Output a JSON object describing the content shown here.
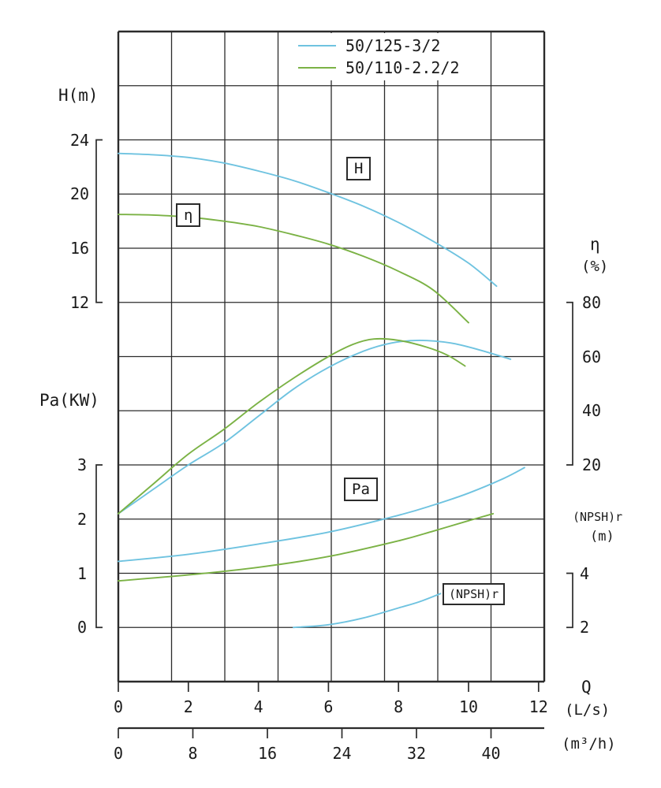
{
  "legend": {
    "items": [
      {
        "label": "50/125-3/2",
        "color": "#6fc3e0"
      },
      {
        "label": "50/110-2.2/2",
        "color": "#7bb245"
      }
    ]
  },
  "axis_titles": {
    "h": "H(m)",
    "pa": "Pa(KW)",
    "eta_symbol": "η",
    "eta_unit": "(%)",
    "npsh": "(NPSH)r",
    "npsh_unit": "(m)",
    "q": "Q",
    "q_unit_ls": "(L/s)",
    "q_unit_m3h": "(m³/h)"
  },
  "curve_labels": {
    "h": "H",
    "eta": "η",
    "pa": "Pa",
    "npsh": "(NPSH)r"
  },
  "chart_data": {
    "type": "line",
    "grid": true,
    "legend_position": "top-center",
    "x_axis": {
      "label": "Q",
      "primary_unit": "(L/s)",
      "primary_ticks": [
        0,
        2,
        4,
        6,
        8,
        10,
        12
      ],
      "primary_range": [
        0,
        12
      ],
      "secondary_unit": "(m³/h)",
      "secondary_ticks": [
        0,
        8,
        16,
        24,
        32,
        40
      ]
    },
    "y_axes": {
      "H": {
        "label": "H(m)",
        "ticks": [
          24,
          20,
          16,
          12
        ]
      },
      "Pa": {
        "label": "Pa(KW)",
        "ticks": [
          3,
          2,
          1,
          0
        ]
      },
      "eta": {
        "label": "η(%)",
        "ticks": [
          80,
          60,
          40,
          20
        ]
      },
      "NPSH": {
        "label": "(NPSH)r (m)",
        "ticks": [
          4,
          2
        ]
      }
    },
    "series": [
      {
        "model": "50/125-3/2",
        "quantity": "H",
        "axis": "H",
        "color": "#6fc3e0",
        "points": [
          [
            0,
            23
          ],
          [
            1,
            22.9
          ],
          [
            2,
            22.7
          ],
          [
            3,
            22.3
          ],
          [
            4,
            21.7
          ],
          [
            5,
            21.0
          ],
          [
            6,
            20.1
          ],
          [
            7,
            19.1
          ],
          [
            8,
            17.9
          ],
          [
            9,
            16.5
          ],
          [
            10,
            14.9
          ],
          [
            10.8,
            13.2
          ]
        ]
      },
      {
        "model": "50/110-2.2/2",
        "quantity": "H",
        "axis": "H",
        "color": "#7bb245",
        "points": [
          [
            0,
            18.5
          ],
          [
            1,
            18.45
          ],
          [
            2,
            18.3
          ],
          [
            3,
            18.0
          ],
          [
            4,
            17.6
          ],
          [
            5,
            17.0
          ],
          [
            6,
            16.3
          ],
          [
            7,
            15.4
          ],
          [
            8,
            14.3
          ],
          [
            9,
            12.9
          ],
          [
            10,
            10.5
          ]
        ]
      },
      {
        "model": "50/125-3/2",
        "quantity": "eta",
        "axis": "eta",
        "color": "#6fc3e0",
        "points": [
          [
            0,
            2
          ],
          [
            1,
            11
          ],
          [
            2,
            20
          ],
          [
            3,
            28
          ],
          [
            4,
            38
          ],
          [
            5,
            48
          ],
          [
            6,
            56
          ],
          [
            7,
            62
          ],
          [
            7.8,
            65
          ],
          [
            8.6,
            66
          ],
          [
            9.5,
            65
          ],
          [
            10.3,
            62.5
          ],
          [
            11.2,
            59
          ]
        ]
      },
      {
        "model": "50/110-2.2/2",
        "quantity": "eta",
        "axis": "eta",
        "color": "#7bb245",
        "points": [
          [
            0,
            2
          ],
          [
            1,
            13
          ],
          [
            2,
            24
          ],
          [
            3,
            33
          ],
          [
            4,
            43
          ],
          [
            5,
            52
          ],
          [
            6,
            60
          ],
          [
            6.7,
            64.5
          ],
          [
            7.3,
            66.5
          ],
          [
            8,
            66
          ],
          [
            8.8,
            63.5
          ],
          [
            9.4,
            60.5
          ],
          [
            9.9,
            56.5
          ]
        ]
      },
      {
        "model": "50/125-3/2",
        "quantity": "Pa",
        "axis": "Pa",
        "color": "#6fc3e0",
        "points": [
          [
            0,
            1.22
          ],
          [
            2,
            1.35
          ],
          [
            4,
            1.54
          ],
          [
            6,
            1.76
          ],
          [
            8,
            2.07
          ],
          [
            9,
            2.26
          ],
          [
            10,
            2.48
          ],
          [
            11,
            2.75
          ],
          [
            11.6,
            2.95
          ]
        ]
      },
      {
        "model": "50/110-2.2/2",
        "quantity": "Pa",
        "axis": "Pa",
        "color": "#7bb245",
        "points": [
          [
            0,
            0.86
          ],
          [
            2,
            0.97
          ],
          [
            4,
            1.11
          ],
          [
            6,
            1.31
          ],
          [
            8,
            1.6
          ],
          [
            9,
            1.78
          ],
          [
            10,
            1.97
          ],
          [
            10.7,
            2.1
          ]
        ]
      },
      {
        "model": "50/125-3/2",
        "quantity": "NPSH",
        "axis": "NPSH",
        "color": "#6fc3e0",
        "points": [
          [
            5,
            2.0
          ],
          [
            6,
            2.1
          ],
          [
            7,
            2.35
          ],
          [
            8,
            2.72
          ],
          [
            8.6,
            2.95
          ],
          [
            9.2,
            3.25
          ]
        ]
      }
    ]
  }
}
